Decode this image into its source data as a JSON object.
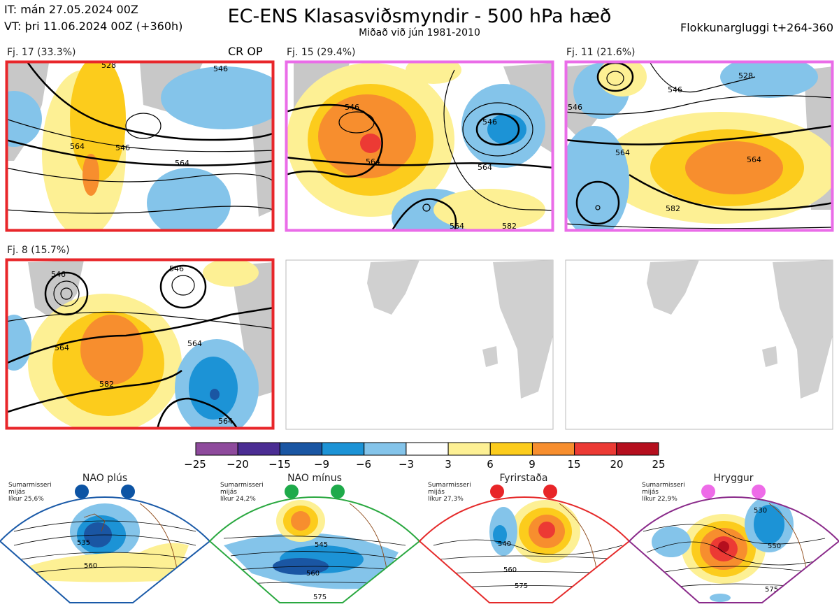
{
  "header": {
    "it": "IT: mán 27.05.2024 00Z",
    "vt": "VT: þri 11.06.2024 00Z  (+360h)",
    "title": "EC-ENS Klasasviðsmyndir - 500 hPa hæð",
    "subtitle": "Miðað við jún 1981-2010",
    "window": "Flokkunargluggi t+264-360"
  },
  "panels": [
    {
      "label": "Fj. 17 (33.3%)",
      "tag": "CR OP",
      "border": "#e8262a",
      "contours": [
        "564",
        "546",
        "564",
        "546",
        "528"
      ]
    },
    {
      "label": "Fj. 15 (29.4%)",
      "tag": "",
      "border": "#ea6ce8",
      "contours": [
        "546",
        "564",
        "546",
        "564",
        "564",
        "582"
      ]
    },
    {
      "label": "Fj. 11 (21.6%)",
      "tag": "",
      "border": "#ea6ce8",
      "contours": [
        "546",
        "564",
        "564",
        "582",
        "528",
        "546"
      ]
    },
    {
      "label": "Fj. 8 (15.7%)",
      "tag": "",
      "border": "#e8262a",
      "contours": [
        "546",
        "546",
        "564",
        "564",
        "582",
        "564"
      ]
    },
    {
      "label": "",
      "tag": "",
      "border": "#bbbbbb",
      "contours": []
    },
    {
      "label": "",
      "tag": "",
      "border": "#bbbbbb",
      "contours": []
    }
  ],
  "colorbar": {
    "ticks": [
      "−25",
      "−20",
      "−15",
      "−9",
      "−6",
      "−3",
      "3",
      "6",
      "9",
      "15",
      "20",
      "25"
    ],
    "colors": [
      "#8e4a9c",
      "#4b2d93",
      "#1a56a3",
      "#1c93d6",
      "#84c4ea",
      "#ffffff",
      "#fdf094",
      "#fccc1c",
      "#f78e2e",
      "#ec3a34",
      "#b50f1e"
    ]
  },
  "regimes": [
    {
      "title": "NAO plús",
      "note": [
        "Sumarmisseri",
        "mijás",
        "líkur 25,6%"
      ],
      "dot_color": "#0d54a4",
      "frame": "#1a5aa8",
      "contours": [
        "535",
        "560"
      ]
    },
    {
      "title": "NAO mínus",
      "note": [
        "Sumarmisseri",
        "mijás",
        "líkur 24,2%"
      ],
      "dot_color": "#1eaa4a",
      "frame": "#2aa840",
      "contours": [
        "545",
        "560",
        "575"
      ]
    },
    {
      "title": "Fyrirstaða",
      "note": [
        "Sumarmisseri",
        "mijás",
        "líkur 27,3%"
      ],
      "dot_color": "#e82528",
      "frame": "#e52a2a",
      "contours": [
        "540",
        "560",
        "575"
      ]
    },
    {
      "title": "Hryggur",
      "note": [
        "Sumarmisseri",
        "mijás",
        "líkur 22,9%"
      ],
      "dot_color": "#ee6be8",
      "frame": "#8a2a8a",
      "contours": [
        "530",
        "550",
        "575"
      ]
    }
  ]
}
